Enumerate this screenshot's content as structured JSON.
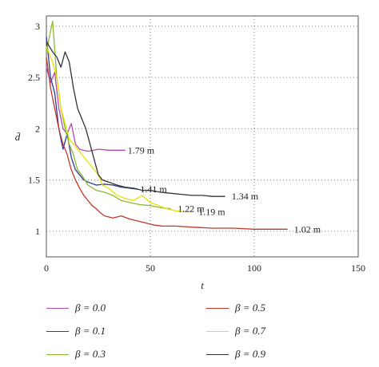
{
  "chart_data": {
    "type": "line",
    "xlabel": "t",
    "ylabel": "d̄",
    "xlim": [
      0,
      150
    ],
    "ylim": [
      0.75,
      3.1
    ],
    "x_ticks": [
      0,
      50,
      100,
      150
    ],
    "y_ticks": [
      1,
      1.5,
      2,
      2.5,
      3
    ],
    "grid": true,
    "legend_position": "bottom",
    "series": [
      {
        "name": "β = 0.0",
        "color": "#b04ab0",
        "points": [
          [
            0,
            2.6
          ],
          [
            2,
            2.45
          ],
          [
            4,
            2.55
          ],
          [
            6,
            2.2
          ],
          [
            8,
            2.0
          ],
          [
            10,
            1.95
          ],
          [
            12,
            2.05
          ],
          [
            14,
            1.85
          ],
          [
            16,
            1.8
          ],
          [
            20,
            1.78
          ],
          [
            25,
            1.8
          ],
          [
            30,
            1.79
          ],
          [
            38,
            1.79
          ]
        ]
      },
      {
        "name": "β = 0.1",
        "color": "#2a3a9a",
        "points": [
          [
            0,
            2.9
          ],
          [
            2,
            2.5
          ],
          [
            4,
            2.35
          ],
          [
            6,
            2.0
          ],
          [
            8,
            1.8
          ],
          [
            10,
            1.95
          ],
          [
            12,
            1.72
          ],
          [
            14,
            1.6
          ],
          [
            16,
            1.55
          ],
          [
            18,
            1.5
          ],
          [
            20,
            1.48
          ],
          [
            24,
            1.45
          ],
          [
            28,
            1.46
          ],
          [
            32,
            1.45
          ],
          [
            36,
            1.43
          ],
          [
            40,
            1.42
          ],
          [
            44,
            1.41
          ]
        ]
      },
      {
        "name": "β = 0.3",
        "color": "#8ab833",
        "points": [
          [
            0,
            2.75
          ],
          [
            3,
            3.05
          ],
          [
            5,
            2.5
          ],
          [
            7,
            2.2
          ],
          [
            9,
            2.0
          ],
          [
            11,
            1.85
          ],
          [
            13,
            1.75
          ],
          [
            15,
            1.6
          ],
          [
            17,
            1.55
          ],
          [
            20,
            1.45
          ],
          [
            24,
            1.4
          ],
          [
            28,
            1.38
          ],
          [
            32,
            1.35
          ],
          [
            36,
            1.3
          ],
          [
            40,
            1.28
          ],
          [
            45,
            1.26
          ],
          [
            50,
            1.25
          ],
          [
            55,
            1.23
          ],
          [
            60,
            1.22
          ]
        ]
      },
      {
        "name": "β = 0.5",
        "color": "#c0392b",
        "points": [
          [
            0,
            2.7
          ],
          [
            2,
            2.4
          ],
          [
            4,
            2.2
          ],
          [
            6,
            2.0
          ],
          [
            8,
            1.85
          ],
          [
            10,
            1.75
          ],
          [
            12,
            1.6
          ],
          [
            14,
            1.5
          ],
          [
            16,
            1.42
          ],
          [
            18,
            1.35
          ],
          [
            20,
            1.3
          ],
          [
            22,
            1.25
          ],
          [
            24,
            1.22
          ],
          [
            26,
            1.18
          ],
          [
            28,
            1.15
          ],
          [
            32,
            1.13
          ],
          [
            36,
            1.15
          ],
          [
            40,
            1.12
          ],
          [
            44,
            1.1
          ],
          [
            48,
            1.08
          ],
          [
            52,
            1.06
          ],
          [
            56,
            1.05
          ],
          [
            62,
            1.05
          ],
          [
            70,
            1.04
          ],
          [
            80,
            1.03
          ],
          [
            90,
            1.03
          ],
          [
            100,
            1.02
          ],
          [
            110,
            1.02
          ],
          [
            116,
            1.02
          ]
        ]
      },
      {
        "name": "β = 0.7",
        "color": "#e8e000",
        "points": [
          [
            0,
            2.8
          ],
          [
            3,
            2.65
          ],
          [
            5,
            2.5
          ],
          [
            7,
            2.2
          ],
          [
            9,
            2.05
          ],
          [
            11,
            1.9
          ],
          [
            13,
            1.85
          ],
          [
            15,
            1.8
          ],
          [
            17,
            1.75
          ],
          [
            19,
            1.7
          ],
          [
            21,
            1.65
          ],
          [
            23,
            1.6
          ],
          [
            25,
            1.55
          ],
          [
            27,
            1.45
          ],
          [
            30,
            1.42
          ],
          [
            34,
            1.35
          ],
          [
            38,
            1.32
          ],
          [
            42,
            1.3
          ],
          [
            46,
            1.35
          ],
          [
            50,
            1.28
          ],
          [
            54,
            1.25
          ],
          [
            58,
            1.22
          ],
          [
            62,
            1.2
          ],
          [
            66,
            1.19
          ],
          [
            70,
            1.19
          ]
        ]
      },
      {
        "name": "β = 0.9",
        "color": "#333333",
        "points": [
          [
            0,
            2.85
          ],
          [
            3,
            2.75
          ],
          [
            5,
            2.7
          ],
          [
            7,
            2.6
          ],
          [
            9,
            2.75
          ],
          [
            11,
            2.65
          ],
          [
            13,
            2.4
          ],
          [
            15,
            2.2
          ],
          [
            17,
            2.1
          ],
          [
            19,
            2.0
          ],
          [
            21,
            1.85
          ],
          [
            23,
            1.7
          ],
          [
            25,
            1.55
          ],
          [
            27,
            1.5
          ],
          [
            30,
            1.48
          ],
          [
            34,
            1.45
          ],
          [
            38,
            1.43
          ],
          [
            42,
            1.42
          ],
          [
            46,
            1.4
          ],
          [
            50,
            1.4
          ],
          [
            55,
            1.38
          ],
          [
            60,
            1.37
          ],
          [
            65,
            1.36
          ],
          [
            70,
            1.35
          ],
          [
            75,
            1.35
          ],
          [
            80,
            1.34
          ],
          [
            86,
            1.34
          ]
        ]
      }
    ],
    "annotations": [
      {
        "text": "1.79 m",
        "x": 38,
        "y": 1.79
      },
      {
        "text": "1.41 m",
        "x": 44,
        "y": 1.41
      },
      {
        "text": "1.34 m",
        "x": 88,
        "y": 1.34
      },
      {
        "text": "1.22 m",
        "x": 62,
        "y": 1.22
      },
      {
        "text": "1.19 m",
        "x": 72,
        "y": 1.19
      },
      {
        "text": "1.02 m",
        "x": 118,
        "y": 1.02
      }
    ]
  }
}
